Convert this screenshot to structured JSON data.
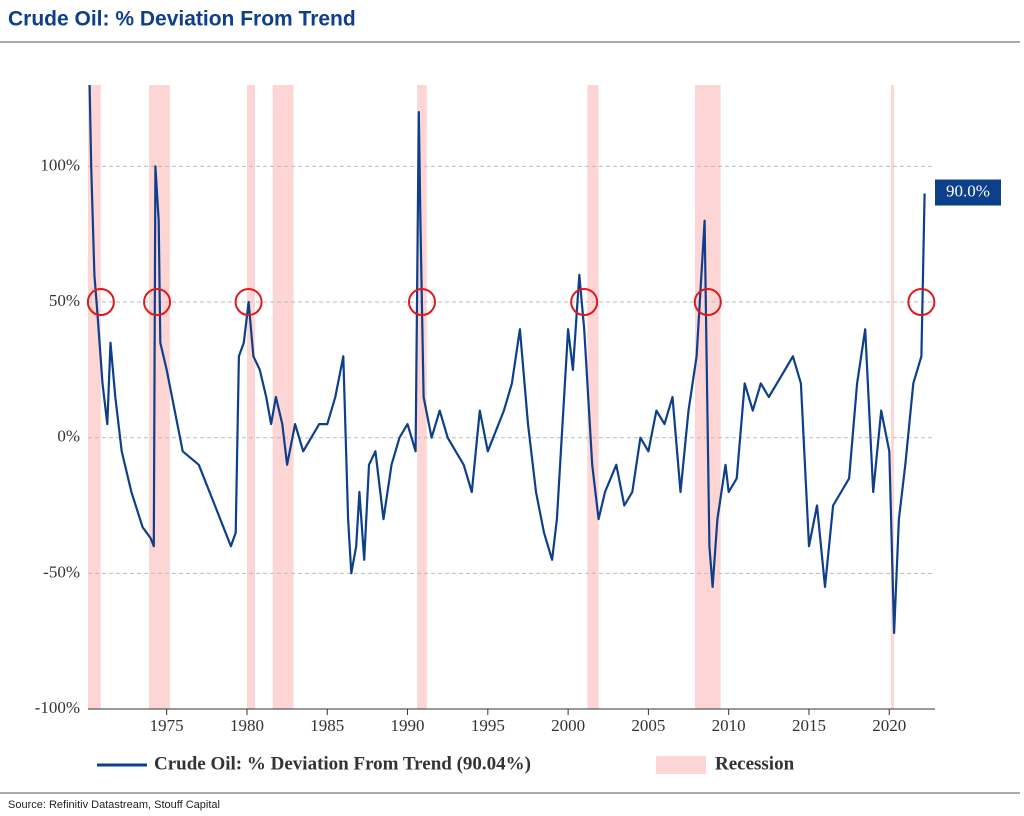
{
  "chart_data": {
    "type": "line",
    "title": "Crude Oil: % Deviation From Trend",
    "source": "Source: Refinitiv Datastream, Stouff Capital",
    "x": [
      1970.2,
      1970.3,
      1970.5,
      1970.7,
      1971.0,
      1971.3,
      1971.5,
      1971.8,
      1972.2,
      1972.8,
      1973.5,
      1974.0,
      1974.2,
      1974.3,
      1974.5,
      1974.6,
      1975.0,
      1975.5,
      1976.0,
      1977.0,
      1978.0,
      1979.0,
      1979.3,
      1979.5,
      1979.8,
      1980.1,
      1980.4,
      1980.8,
      1981.2,
      1981.5,
      1981.8,
      1982.2,
      1982.5,
      1983.0,
      1983.5,
      1984.0,
      1984.5,
      1985.0,
      1985.5,
      1986.0,
      1986.3,
      1986.5,
      1986.8,
      1987.0,
      1987.3,
      1987.6,
      1988.0,
      1988.5,
      1989.0,
      1989.5,
      1990.0,
      1990.5,
      1990.7,
      1990.8,
      1991.0,
      1991.5,
      1992.0,
      1992.5,
      1993.0,
      1993.5,
      1994.0,
      1994.5,
      1995.0,
      1996.0,
      1996.5,
      1997.0,
      1997.5,
      1998.0,
      1998.5,
      1999.0,
      1999.3,
      1999.7,
      2000.0,
      2000.3,
      2000.7,
      2001.0,
      2001.5,
      2001.9,
      2002.3,
      2003.0,
      2003.5,
      2004.0,
      2004.5,
      2005.0,
      2005.5,
      2006.0,
      2006.5,
      2007.0,
      2007.5,
      2008.0,
      2008.5,
      2008.8,
      2009.0,
      2009.3,
      2009.8,
      2010.0,
      2010.5,
      2011.0,
      2011.5,
      2012.0,
      2012.5,
      2013.0,
      2013.5,
      2014.0,
      2014.5,
      2015.0,
      2015.5,
      2016.0,
      2016.5,
      2017.0,
      2017.5,
      2018.0,
      2018.5,
      2019.0,
      2019.5,
      2020.0,
      2020.3,
      2020.6,
      2021.0,
      2021.5,
      2022.0,
      2022.2
    ],
    "series": [
      {
        "name": "Crude Oil: % Deviation From Trend (90.04%)",
        "color": "#0d3f8a",
        "values": [
          130,
          100,
          60,
          45,
          20,
          5,
          35,
          15,
          -5,
          -20,
          -33,
          -37,
          -40,
          100,
          80,
          35,
          25,
          10,
          -5,
          -10,
          -25,
          -40,
          -35,
          30,
          35,
          50,
          30,
          25,
          15,
          5,
          15,
          5,
          -10,
          5,
          -5,
          0,
          5,
          5,
          15,
          30,
          -30,
          -50,
          -40,
          -20,
          -45,
          -10,
          -5,
          -30,
          -10,
          0,
          5,
          -5,
          120,
          80,
          15,
          0,
          10,
          0,
          -5,
          -10,
          -20,
          10,
          -5,
          10,
          20,
          40,
          5,
          -20,
          -35,
          -45,
          -30,
          10,
          40,
          25,
          60,
          40,
          -10,
          -30,
          -20,
          -10,
          -25,
          -20,
          0,
          -5,
          10,
          5,
          15,
          -20,
          10,
          30,
          80,
          -40,
          -55,
          -30,
          -10,
          -20,
          -15,
          20,
          10,
          20,
          15,
          20,
          25,
          30,
          20,
          -40,
          -25,
          -55,
          -25,
          -20,
          -15,
          20,
          40,
          -20,
          10,
          -5,
          -72,
          -30,
          -10,
          20,
          30,
          90
        ]
      }
    ],
    "recession_name": "Recession",
    "recession_color": "#fdd5d5",
    "recessions": [
      [
        1970.1,
        1970.9
      ],
      [
        1973.9,
        1975.2
      ],
      [
        1980.0,
        1980.5
      ],
      [
        1981.6,
        1982.9
      ],
      [
        1990.6,
        1991.2
      ],
      [
        2001.2,
        2001.9
      ],
      [
        2007.9,
        2009.5
      ],
      [
        2020.1,
        2020.3
      ]
    ],
    "markers": {
      "x": [
        1970.9,
        1974.4,
        1980.1,
        1990.9,
        2001.0,
        2008.7,
        2022.0
      ],
      "y": [
        50,
        50,
        50,
        50,
        50,
        50,
        50
      ],
      "color": "#e0191e"
    },
    "annotation": "90.0%",
    "xlim": [
      1970.1,
      2022.6
    ],
    "ylim": [
      -100,
      130
    ],
    "xticks": [
      1975,
      1980,
      1985,
      1990,
      1995,
      2000,
      2005,
      2010,
      2015,
      2020
    ],
    "yticks": [
      {
        "value": -100,
        "label": "-100%"
      },
      {
        "value": -50,
        "label": "-50%"
      },
      {
        "value": 0,
        "label": "0%"
      },
      {
        "value": 50,
        "label": "50%"
      },
      {
        "value": 100,
        "label": "100%"
      }
    ],
    "grid": true
  }
}
